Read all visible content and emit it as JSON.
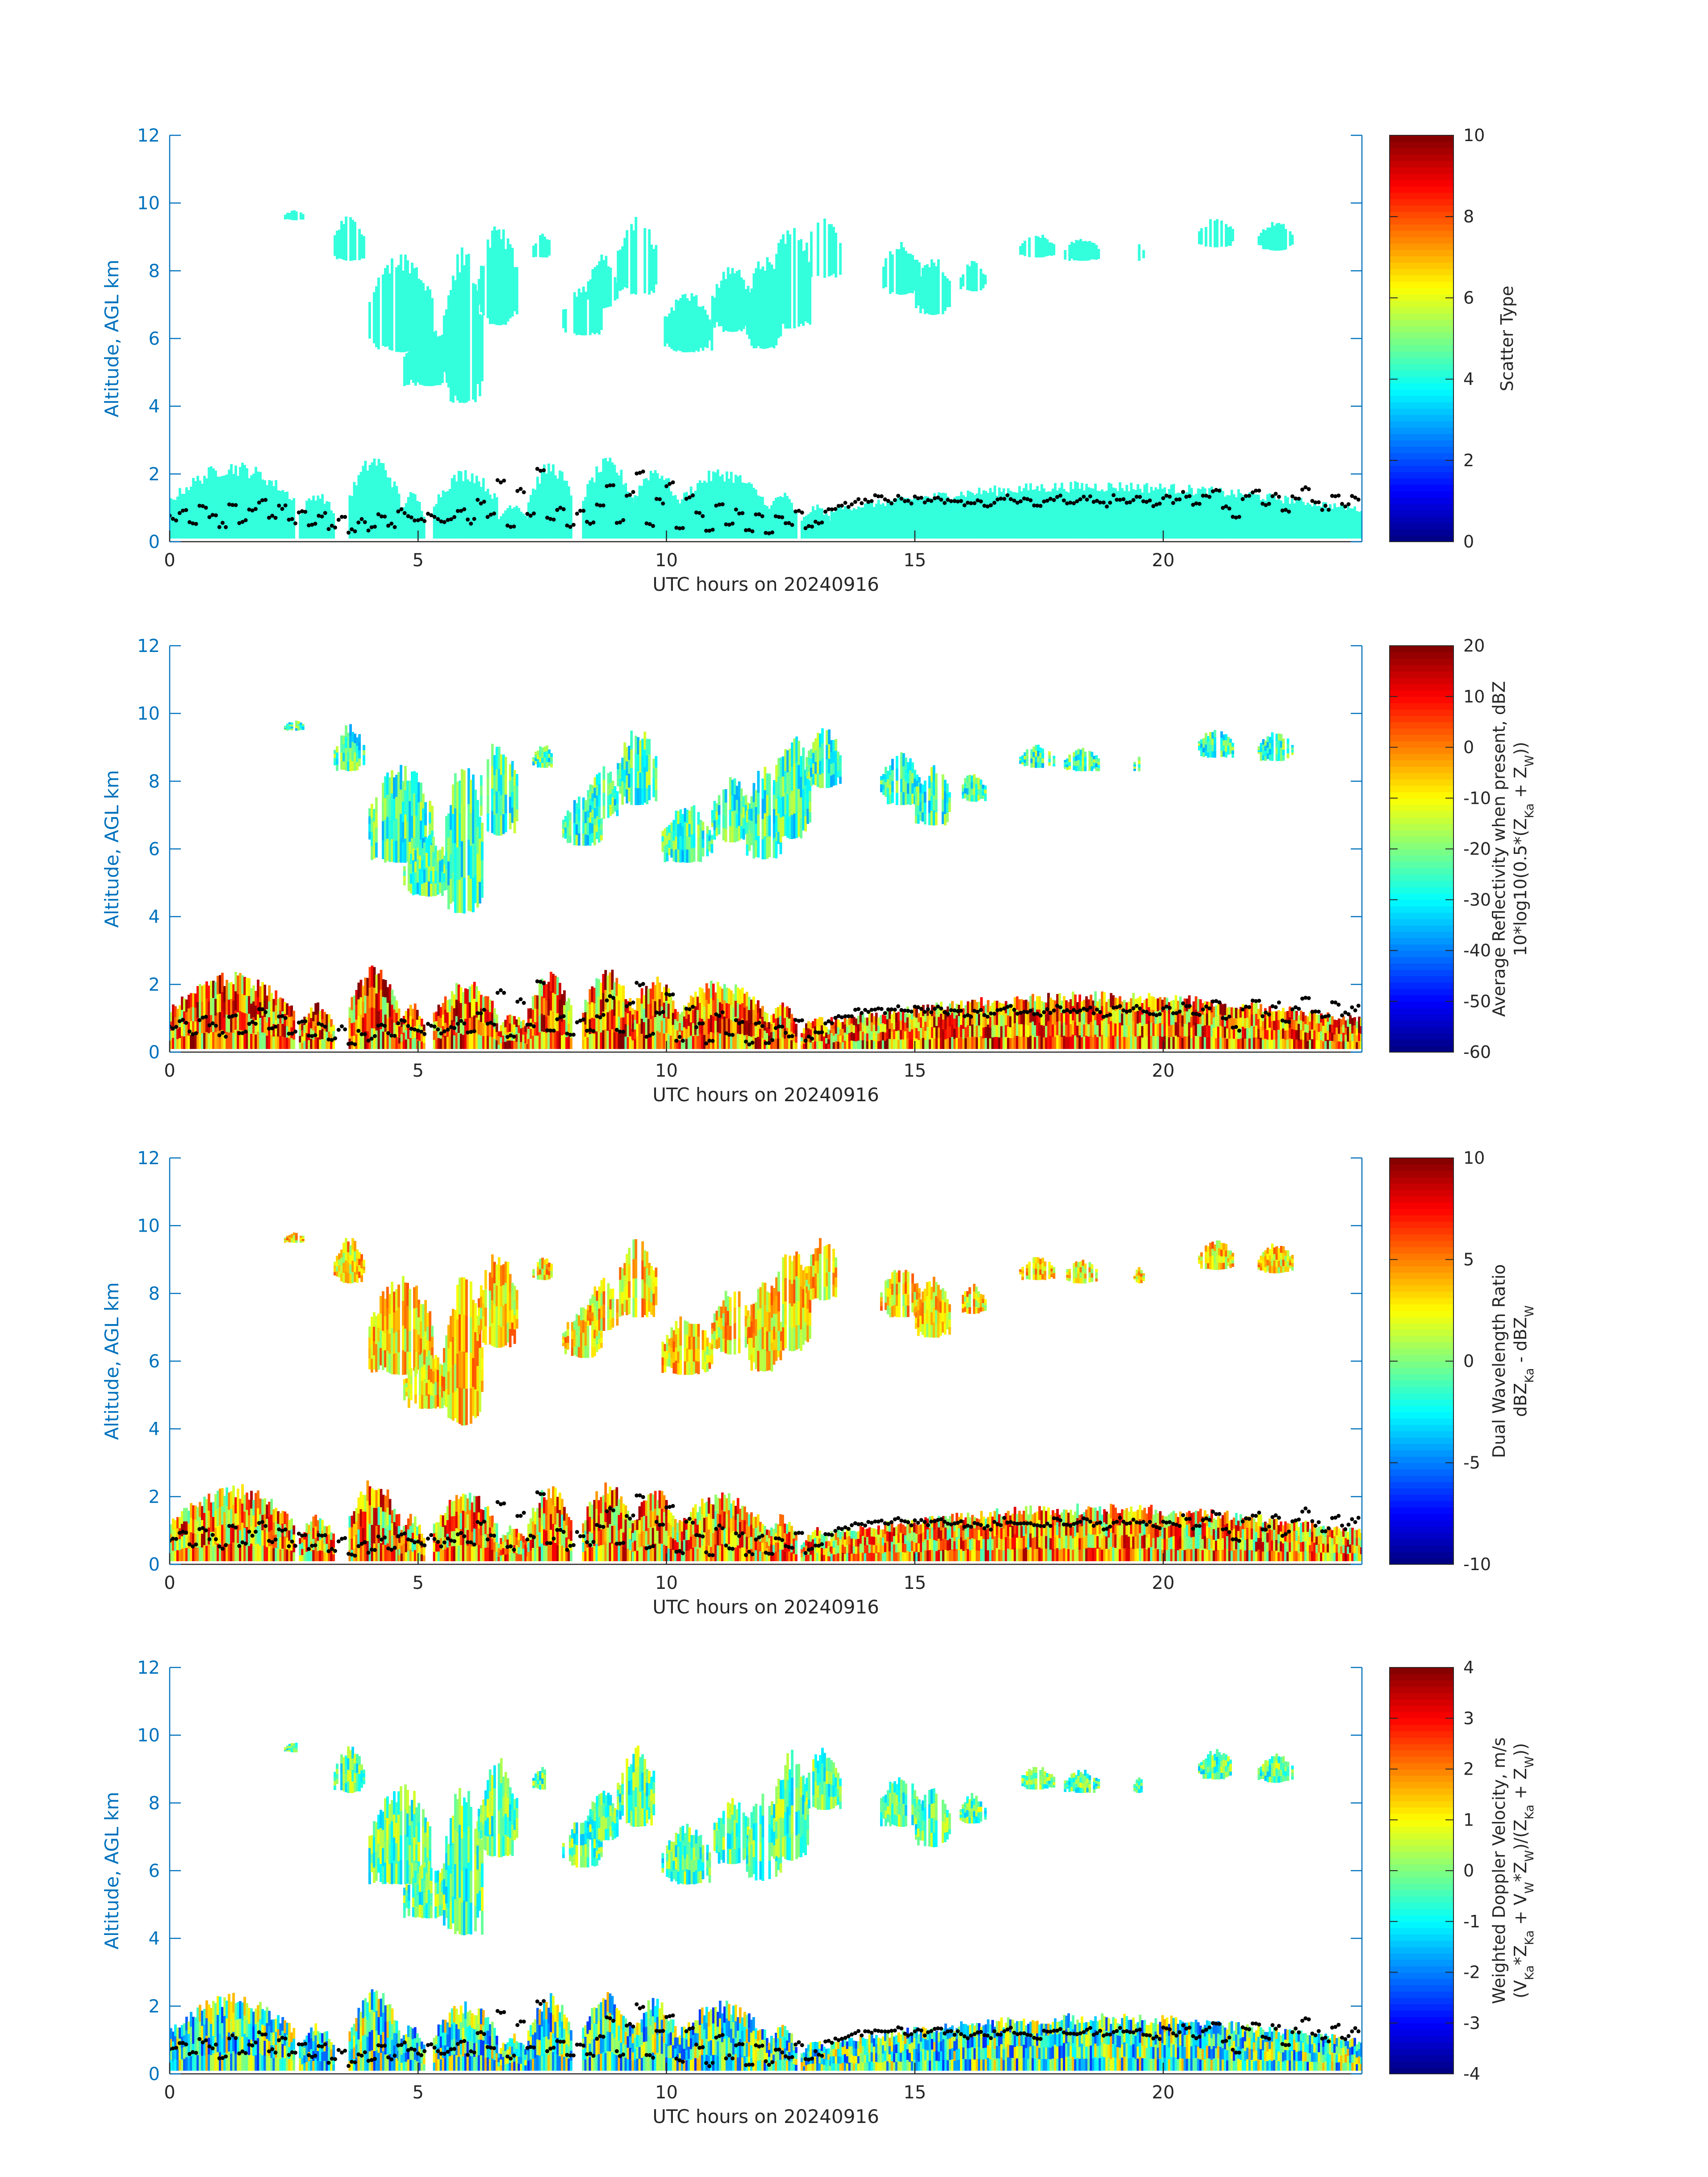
{
  "figure": {
    "date_label": "UTC hours on 20240916"
  },
  "chart_data": [
    {
      "type": "heatmap",
      "panel": "scatter-type",
      "xlabel": "UTC hours on 20240916",
      "ylabel": "Altitude, AGL km",
      "xlim": [
        0,
        24
      ],
      "ylim": [
        0,
        12
      ],
      "xticks": [
        0,
        5,
        10,
        15,
        20
      ],
      "yticks": [
        0,
        2,
        4,
        6,
        8,
        10,
        12
      ],
      "colorbar": {
        "label_lines": [
          "Scatter Type"
        ],
        "clim": [
          0,
          10
        ],
        "ticks": [
          0,
          2,
          4,
          6,
          8,
          10
        ],
        "colormap": "jet"
      },
      "field_value": 4,
      "field_color": "#33ffdd"
    },
    {
      "type": "heatmap",
      "panel": "reflectivity",
      "xlabel": "UTC hours on 20240916",
      "ylabel": "Altitude, AGL km",
      "xlim": [
        0,
        24
      ],
      "ylim": [
        0,
        12
      ],
      "xticks": [
        0,
        5,
        10,
        15,
        20
      ],
      "yticks": [
        0,
        2,
        4,
        6,
        8,
        10,
        12
      ],
      "colorbar": {
        "label_lines": [
          "Average Reflectivity when present, dBZ",
          "10*log10(0.5*(Z_Ka + Z_W))"
        ],
        "clim": [
          -60,
          20
        ],
        "ticks": [
          -60,
          -50,
          -40,
          -30,
          -20,
          -10,
          0,
          10,
          20
        ],
        "colormap": "jet"
      },
      "field_value": -25,
      "low_cloud_value": 0,
      "edge_value": -50
    },
    {
      "type": "heatmap",
      "panel": "dual-wavelength-ratio",
      "xlabel": "UTC hours on 20240916",
      "ylabel": "Altitude, AGL km",
      "xlim": [
        0,
        24
      ],
      "ylim": [
        0,
        12
      ],
      "xticks": [
        0,
        5,
        10,
        15,
        20
      ],
      "yticks": [
        0,
        2,
        4,
        6,
        8,
        10,
        12
      ],
      "colorbar": {
        "label_lines": [
          "Dual Wavelength Ratio",
          "dBZ_Ka - dBZ_W"
        ],
        "clim": [
          -10,
          10
        ],
        "ticks": [
          -10,
          -5,
          0,
          5,
          10
        ],
        "colormap": "jet"
      },
      "field_value": 3,
      "low_cloud_value": 4
    },
    {
      "type": "heatmap",
      "panel": "doppler-velocity",
      "xlabel": "UTC hours on 20240916",
      "ylabel": "Altitude, AGL km",
      "xlim": [
        0,
        24
      ],
      "ylim": [
        0,
        12
      ],
      "xticks": [
        0,
        5,
        10,
        15,
        20
      ],
      "yticks": [
        0,
        2,
        4,
        6,
        8,
        10,
        12
      ],
      "colorbar": {
        "label_lines": [
          "Weighted Doppler Velocity, m/s",
          "(V_Ka*Z_Ka + V_W*Z_W)/(Z_Ka + Z_W))"
        ],
        "clim": [
          -4,
          4
        ],
        "ticks": [
          -4,
          -3,
          -2,
          -1,
          0,
          1,
          2,
          3,
          4
        ],
        "colormap": "jet"
      },
      "field_value": -0.3,
      "low_cloud_value": -0.5
    }
  ],
  "cloud_regions": {
    "upper": [
      {
        "x0": 2.3,
        "x1": 2.7,
        "ybot": 9.5,
        "ytop": 9.8
      },
      {
        "x0": 3.3,
        "x1": 3.9,
        "ybot": 8.3,
        "ytop": 9.7
      },
      {
        "x0": 4.0,
        "x1": 5.3,
        "ybot": 5.6,
        "ytop": 8.6
      },
      {
        "x0": 4.7,
        "x1": 5.7,
        "ybot": 4.6,
        "ytop": 6.4
      },
      {
        "x0": 5.5,
        "x1": 6.3,
        "ybot": 4.1,
        "ytop": 8.8
      },
      {
        "x0": 6.2,
        "x1": 7.0,
        "ybot": 6.4,
        "ytop": 9.4
      },
      {
        "x0": 7.3,
        "x1": 7.7,
        "ybot": 8.4,
        "ytop": 9.1
      },
      {
        "x0": 7.9,
        "x1": 8.7,
        "ybot": 6.1,
        "ytop": 7.6
      },
      {
        "x0": 8.4,
        "x1": 9.0,
        "ybot": 6.9,
        "ytop": 8.5
      },
      {
        "x0": 9.0,
        "x1": 9.8,
        "ybot": 7.3,
        "ytop": 9.7
      },
      {
        "x0": 9.9,
        "x1": 10.9,
        "ybot": 5.6,
        "ytop": 7.4
      },
      {
        "x0": 10.9,
        "x1": 11.7,
        "ybot": 6.2,
        "ytop": 8.2
      },
      {
        "x0": 11.6,
        "x1": 12.3,
        "ybot": 5.7,
        "ytop": 8.5
      },
      {
        "x0": 12.1,
        "x1": 12.9,
        "ybot": 6.3,
        "ytop": 9.6
      },
      {
        "x0": 12.8,
        "x1": 13.5,
        "ybot": 7.8,
        "ytop": 9.7
      },
      {
        "x0": 14.3,
        "x1": 15.1,
        "ybot": 7.3,
        "ytop": 8.9
      },
      {
        "x0": 15.0,
        "x1": 15.7,
        "ybot": 6.7,
        "ytop": 8.5
      },
      {
        "x0": 15.9,
        "x1": 16.4,
        "ybot": 7.4,
        "ytop": 8.3
      },
      {
        "x0": 17.1,
        "x1": 17.8,
        "ybot": 8.4,
        "ytop": 9.1
      },
      {
        "x0": 18.0,
        "x1": 18.7,
        "ybot": 8.3,
        "ytop": 9.0
      },
      {
        "x0": 19.4,
        "x1": 19.6,
        "ybot": 8.3,
        "ytop": 8.8
      },
      {
        "x0": 20.7,
        "x1": 21.4,
        "ybot": 8.7,
        "ytop": 9.6
      },
      {
        "x0": 21.9,
        "x1": 22.6,
        "ybot": 8.6,
        "ytop": 9.5
      }
    ],
    "low": [
      {
        "x0": 0.0,
        "x1": 2.5,
        "ybot": 0.1,
        "ytop": 2.4
      },
      {
        "x0": 2.6,
        "x1": 3.3,
        "ybot": 0.1,
        "ytop": 1.5
      },
      {
        "x0": 3.6,
        "x1": 4.6,
        "ybot": 0.1,
        "ytop": 2.6
      },
      {
        "x0": 4.6,
        "x1": 5.1,
        "ybot": 0.1,
        "ytop": 1.5
      },
      {
        "x0": 5.3,
        "x1": 6.6,
        "ybot": 0.1,
        "ytop": 2.2
      },
      {
        "x0": 6.6,
        "x1": 7.2,
        "ybot": 0.1,
        "ytop": 1.2
      },
      {
        "x0": 7.2,
        "x1": 8.1,
        "ybot": 0.1,
        "ytop": 2.4
      },
      {
        "x0": 8.3,
        "x1": 9.3,
        "ybot": 0.1,
        "ytop": 2.5
      },
      {
        "x0": 9.3,
        "x1": 10.2,
        "ybot": 0.1,
        "ytop": 2.3
      },
      {
        "x0": 10.3,
        "x1": 10.6,
        "ybot": 0.1,
        "ytop": 1.2
      },
      {
        "x0": 10.2,
        "x1": 12.0,
        "ybot": 0.1,
        "ytop": 2.2
      },
      {
        "x0": 12.0,
        "x1": 12.6,
        "ybot": 0.1,
        "ytop": 1.5
      },
      {
        "x0": 12.7,
        "x1": 13.3,
        "ybot": 0.1,
        "ytop": 1.1
      },
      {
        "x0": 13.3,
        "x1": 24.0,
        "ybot": 0.1,
        "ytop": 1.8
      }
    ],
    "cloud_base_dots": [
      [
        0.0,
        0.7
      ],
      [
        0.2,
        0.9
      ],
      [
        0.4,
        0.6
      ],
      [
        0.6,
        1.0
      ],
      [
        0.8,
        0.8
      ],
      [
        1.0,
        0.5
      ],
      [
        1.2,
        1.1
      ],
      [
        1.4,
        0.6
      ],
      [
        1.6,
        0.9
      ],
      [
        1.8,
        1.2
      ],
      [
        2.0,
        0.7
      ],
      [
        2.2,
        1.0
      ],
      [
        2.4,
        0.6
      ],
      [
        2.6,
        0.9
      ],
      [
        2.8,
        0.5
      ],
      [
        3.0,
        0.8
      ],
      [
        3.2,
        0.4
      ],
      [
        3.4,
        0.7
      ],
      [
        3.6,
        0.3
      ],
      [
        3.8,
        0.6
      ],
      [
        4.0,
        0.4
      ],
      [
        4.2,
        0.8
      ],
      [
        4.4,
        0.5
      ],
      [
        4.6,
        0.9
      ],
      [
        4.8,
        0.7
      ],
      [
        5.0,
        0.6
      ],
      [
        5.2,
        0.8
      ],
      [
        5.4,
        0.6
      ],
      [
        5.6,
        0.7
      ],
      [
        5.8,
        0.9
      ],
      [
        6.0,
        0.6
      ],
      [
        6.2,
        1.2
      ],
      [
        6.4,
        0.8
      ],
      [
        6.6,
        1.8
      ],
      [
        6.8,
        0.5
      ],
      [
        7.0,
        1.5
      ],
      [
        7.2,
        0.8
      ],
      [
        7.4,
        2.1
      ],
      [
        7.6,
        0.7
      ],
      [
        7.8,
        1.0
      ],
      [
        8.0,
        0.5
      ],
      [
        8.2,
        0.9
      ],
      [
        8.4,
        0.6
      ],
      [
        8.6,
        1.1
      ],
      [
        8.8,
        1.6
      ],
      [
        9.0,
        0.6
      ],
      [
        9.2,
        1.4
      ],
      [
        9.4,
        2.0
      ],
      [
        9.6,
        0.5
      ],
      [
        9.8,
        1.2
      ],
      [
        10.0,
        1.7
      ],
      [
        10.2,
        0.4
      ],
      [
        10.4,
        1.3
      ],
      [
        10.6,
        0.8
      ],
      [
        10.8,
        0.3
      ],
      [
        11.0,
        1.1
      ],
      [
        11.2,
        0.5
      ],
      [
        11.4,
        0.9
      ],
      [
        11.6,
        0.3
      ],
      [
        11.8,
        0.8
      ],
      [
        12.0,
        0.3
      ],
      [
        12.2,
        0.7
      ],
      [
        12.4,
        0.5
      ],
      [
        12.6,
        0.9
      ],
      [
        12.8,
        0.4
      ],
      [
        13.0,
        0.6
      ],
      [
        13.2,
        0.9
      ],
      [
        13.4,
        1.0
      ],
      [
        13.6,
        1.1
      ],
      [
        13.8,
        1.2
      ],
      [
        14.0,
        1.2
      ],
      [
        14.2,
        1.3
      ],
      [
        14.4,
        1.2
      ],
      [
        14.6,
        1.3
      ],
      [
        14.8,
        1.2
      ],
      [
        15.0,
        1.3
      ],
      [
        15.2,
        1.2
      ],
      [
        15.4,
        1.3
      ],
      [
        15.6,
        1.2
      ],
      [
        15.8,
        1.2
      ],
      [
        16.0,
        1.1
      ],
      [
        16.2,
        1.2
      ],
      [
        16.4,
        1.1
      ],
      [
        16.6,
        1.2
      ],
      [
        16.8,
        1.3
      ],
      [
        17.0,
        1.2
      ],
      [
        17.2,
        1.2
      ],
      [
        17.4,
        1.1
      ],
      [
        17.6,
        1.2
      ],
      [
        17.8,
        1.3
      ],
      [
        18.0,
        1.2
      ],
      [
        18.2,
        1.2
      ],
      [
        18.4,
        1.3
      ],
      [
        18.6,
        1.2
      ],
      [
        18.8,
        1.1
      ],
      [
        19.0,
        1.3
      ],
      [
        19.2,
        1.2
      ],
      [
        19.4,
        1.3
      ],
      [
        19.6,
        1.2
      ],
      [
        19.8,
        1.1
      ],
      [
        20.0,
        1.3
      ],
      [
        20.2,
        1.2
      ],
      [
        20.4,
        1.4
      ],
      [
        20.6,
        1.1
      ],
      [
        20.8,
        1.3
      ],
      [
        21.0,
        1.5
      ],
      [
        21.2,
        1.0
      ],
      [
        21.4,
        0.7
      ],
      [
        21.6,
        1.3
      ],
      [
        21.8,
        1.5
      ],
      [
        22.0,
        1.1
      ],
      [
        22.2,
        1.4
      ],
      [
        22.4,
        0.9
      ],
      [
        22.6,
        1.3
      ],
      [
        22.8,
        1.6
      ],
      [
        23.0,
        1.2
      ],
      [
        23.2,
        1.0
      ],
      [
        23.4,
        1.4
      ],
      [
        23.6,
        1.1
      ],
      [
        23.8,
        1.3
      ]
    ]
  }
}
